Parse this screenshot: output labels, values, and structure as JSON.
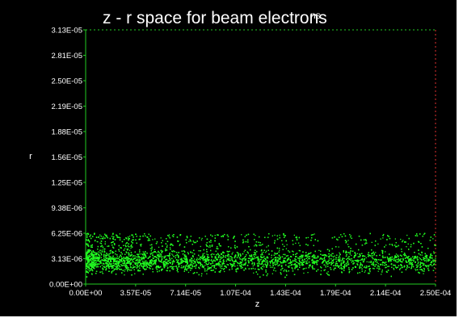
{
  "chart_data": {
    "type": "scatter",
    "title": "z - r space for beam electrons",
    "title_superscript": "ns",
    "xlabel": "z",
    "ylabel": "r",
    "xlim": [
      0,
      0.00025
    ],
    "ylim": [
      0,
      3.13e-05
    ],
    "x_ticks": [
      "0.00E+00",
      "3.57E-05",
      "7.14E-05",
      "1.07E-04",
      "1.43E-04",
      "1.79E-04",
      "2.14E-04",
      "2.50E-04"
    ],
    "y_ticks": [
      "0.00E+00",
      "3.13E-06",
      "6.25E-06",
      "9.38E-06",
      "1.25E-05",
      "1.56E-05",
      "1.88E-05",
      "2.19E-05",
      "2.50E-05",
      "2.81E-05",
      "3.13E-05"
    ],
    "grid": false,
    "point_color": "#22ff22",
    "background_color": "#000000",
    "axis_color_left_bottom": "#22cc22",
    "axis_color_top_right": "#e03030",
    "distribution": {
      "z_range": [
        0,
        0.00025
      ],
      "r_dense_range": [
        8e-07,
        4.6e-06
      ],
      "r_sparse_max": 6.3e-06,
      "density_trend": "decreasing with z"
    }
  }
}
